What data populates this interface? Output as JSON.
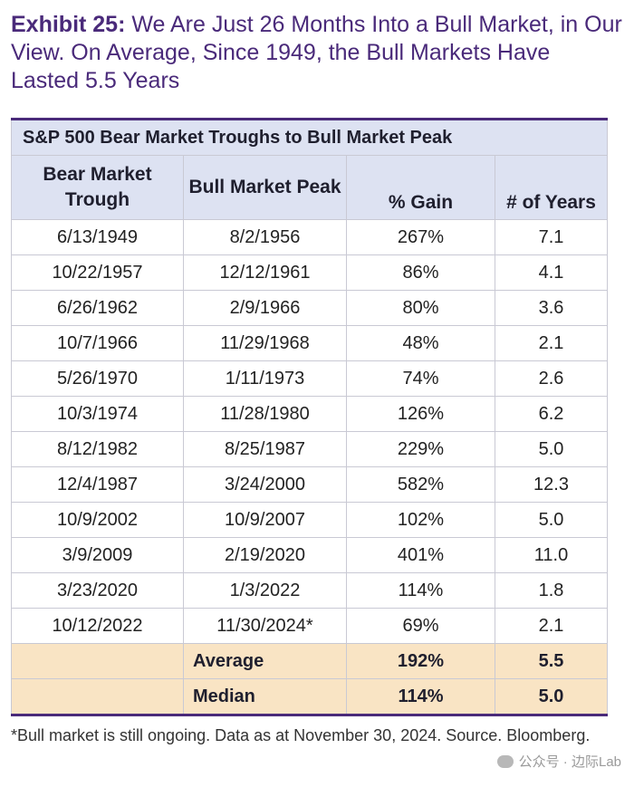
{
  "title": {
    "bold": "Exhibit 25:",
    "rest": " We Are Just 26 Months Into a Bull Market, in Our View. On Average, Since 1949, the Bull Markets Have Lasted 5.5 Years"
  },
  "table": {
    "caption": "S&P 500 Bear Market Troughs to Bull Market Peak",
    "headers": [
      "Bear Market Trough",
      "Bull Market Peak",
      "% Gain",
      "# of Years"
    ],
    "rows": [
      [
        "6/13/1949",
        "8/2/1956",
        "267%",
        "7.1"
      ],
      [
        "10/22/1957",
        "12/12/1961",
        "86%",
        "4.1"
      ],
      [
        "6/26/1962",
        "2/9/1966",
        "80%",
        "3.6"
      ],
      [
        "10/7/1966",
        "11/29/1968",
        "48%",
        "2.1"
      ],
      [
        "5/26/1970",
        "1/11/1973",
        "74%",
        "2.6"
      ],
      [
        "10/3/1974",
        "11/28/1980",
        "126%",
        "6.2"
      ],
      [
        "8/12/1982",
        "8/25/1987",
        "229%",
        "5.0"
      ],
      [
        "12/4/1987",
        "3/24/2000",
        "582%",
        "12.3"
      ],
      [
        "10/9/2002",
        "10/9/2007",
        "102%",
        "5.0"
      ],
      [
        "3/9/2009",
        "2/19/2020",
        "401%",
        "11.0"
      ],
      [
        "3/23/2020",
        "1/3/2022",
        "114%",
        "1.8"
      ],
      [
        "10/12/2022",
        "11/30/2024*",
        "69%",
        "2.1"
      ]
    ],
    "summary": [
      {
        "label": "Average",
        "gain": "192%",
        "years": "5.5"
      },
      {
        "label": "Median",
        "gain": "114%",
        "years": "5.0"
      }
    ]
  },
  "footnote": "*Bull market is still ongoing. Data as at November 30, 2024. Source. Bloomberg.",
  "watermark": "公众号 · 边际Lab",
  "colors": {
    "title": "#4a2a7a",
    "header_bg": "#dde2f2",
    "summary_bg": "#f9e4c4"
  }
}
